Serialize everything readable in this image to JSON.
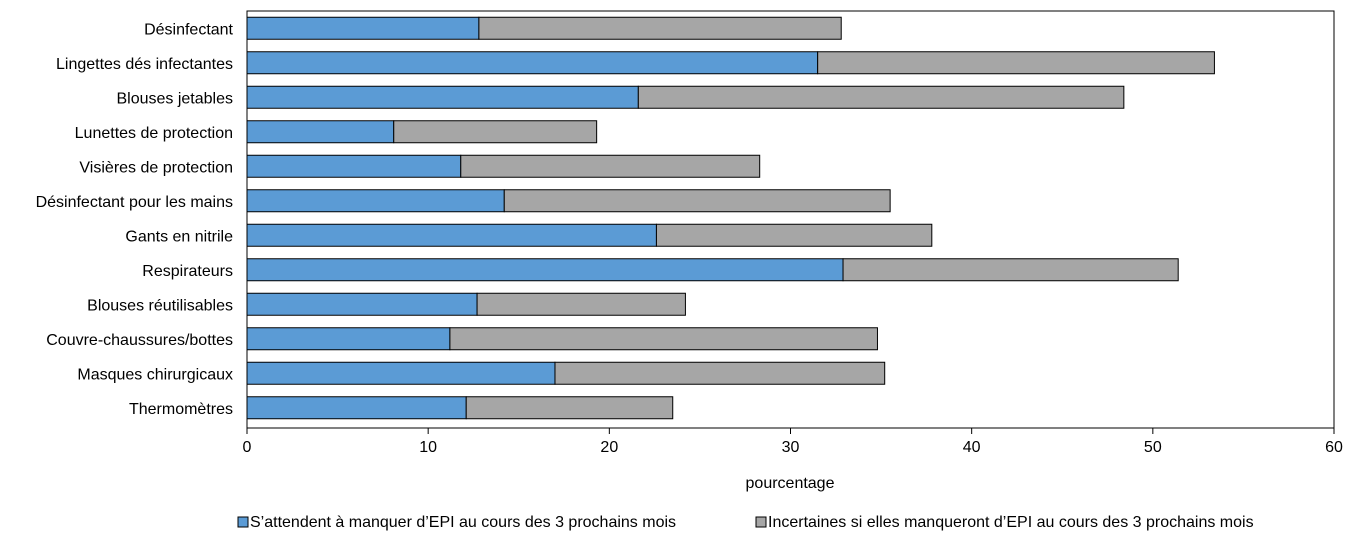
{
  "chart_data": {
    "type": "bar",
    "orientation": "horizontal",
    "stacked": true,
    "categories": [
      "Désinfectant",
      "Lingettes dés infectantes",
      "Blouses jetables",
      "Lunettes de protection",
      "Visières de protection",
      "Désinfectant pour les mains",
      "Gants en nitrile",
      "Respirateurs",
      "Blouses réutilisables",
      "Couvre-chaussures/bottes",
      "Masques chirurgicaux",
      "Thermomètres"
    ],
    "series": [
      {
        "name": "S’attendent à manquer d’EPI au cours des 3 prochains mois",
        "color": "#5b9bd5",
        "values": [
          12.8,
          31.5,
          21.6,
          8.1,
          11.8,
          14.2,
          22.6,
          32.9,
          12.7,
          11.2,
          17.0,
          12.1
        ]
      },
      {
        "name": "Incertaines si elles manqueront d’EPI au cours des 3 prochains mois",
        "color": "#a6a6a6",
        "values": [
          20.0,
          21.9,
          26.8,
          11.2,
          16.5,
          21.3,
          15.2,
          18.5,
          11.5,
          23.6,
          18.2,
          11.4
        ]
      }
    ],
    "xlabel": "pourcentage",
    "xlim": [
      0,
      60
    ],
    "xticks": [
      0,
      10,
      20,
      30,
      40,
      50,
      60
    ],
    "grid": false,
    "legend_position": "bottom"
  }
}
